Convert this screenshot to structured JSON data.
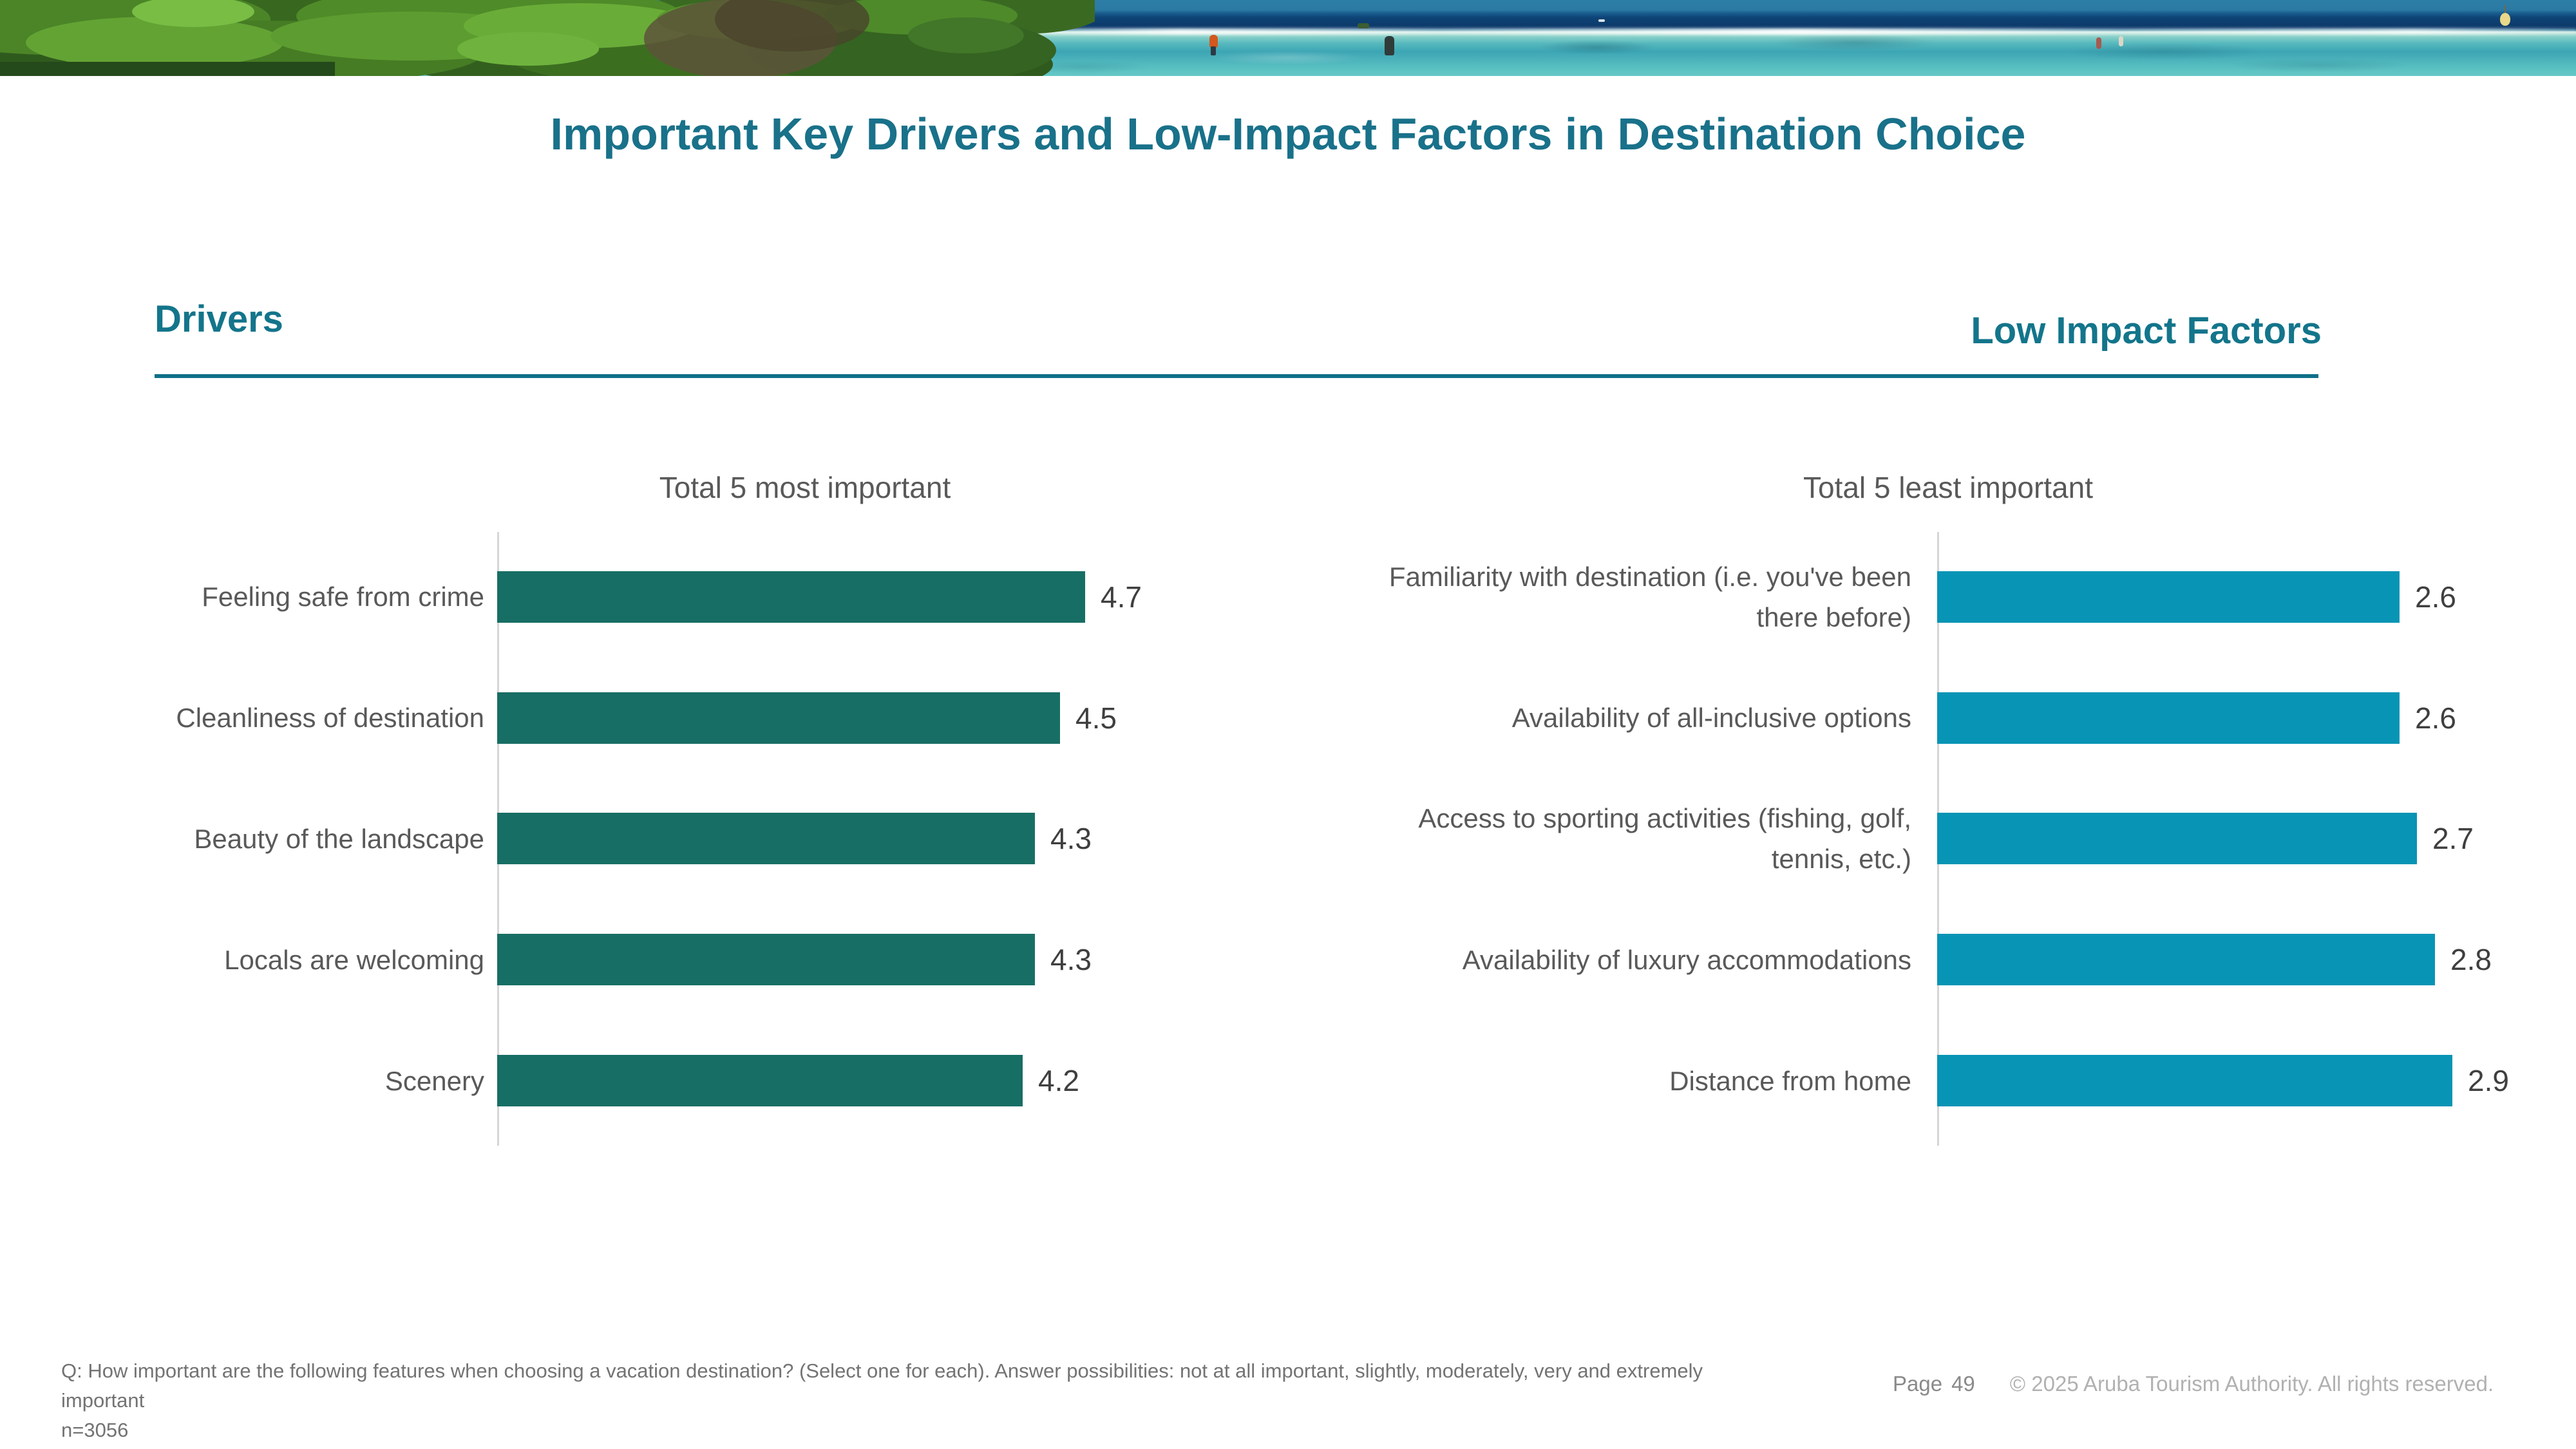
{
  "title": "Important Key Drivers and Low-Impact Factors in Destination Choice",
  "sections": {
    "left_header": "Drivers",
    "right_header": "Low Impact Factors"
  },
  "chart_data": [
    {
      "type": "bar",
      "orientation": "horizontal",
      "title": "Total 5 most important",
      "categories": [
        "Feeling safe from crime",
        "Cleanliness of destination",
        "Beauty of the landscape",
        "Locals are welcoming",
        "Scenery"
      ],
      "values": [
        4.7,
        4.5,
        4.3,
        4.3,
        4.2
      ],
      "xlim": [
        0,
        5
      ],
      "bar_color": "#176E64",
      "value_label_position": "outside-end",
      "grid": false,
      "legend": "none"
    },
    {
      "type": "bar",
      "orientation": "horizontal",
      "title": "Total 5 least important",
      "categories": [
        "Familiarity with destination (i.e. you've been there before)",
        "Availability of all-inclusive options",
        "Access to sporting activities (fishing, golf, tennis, etc.)",
        "Availability of luxury accommodations",
        "Distance from home"
      ],
      "values": [
        2.6,
        2.6,
        2.7,
        2.8,
        2.9
      ],
      "xlim": [
        0,
        3
      ],
      "bar_color": "#0894B5",
      "value_label_position": "outside-end",
      "grid": false,
      "legend": "none"
    }
  ],
  "footer": {
    "question": "Q: How important are the following features when choosing a vacation destination?  (Select one for each). Answer possibilities: not at all important, slightly, moderately, very and extremely important",
    "sample_size": "n=3056",
    "page_label": "Page",
    "page_number": "49",
    "copyright": "© 2025 Aruba Tourism Authority. All rights reserved."
  },
  "colors": {
    "title_teal": "#19718A",
    "header_teal": "#13758B",
    "divider_teal": "#0E7089",
    "driver_bar": "#176E64",
    "low_impact_bar": "#0894B5",
    "category_label_gray": "#595959",
    "value_label_gray": "#3F3F3F",
    "axis_gray": "#D6D6D6",
    "footnote_gray": "#737373",
    "copyright_gray": "#B1B1B1"
  },
  "banner": {
    "scene": "tropical-shoreline-panorama"
  }
}
